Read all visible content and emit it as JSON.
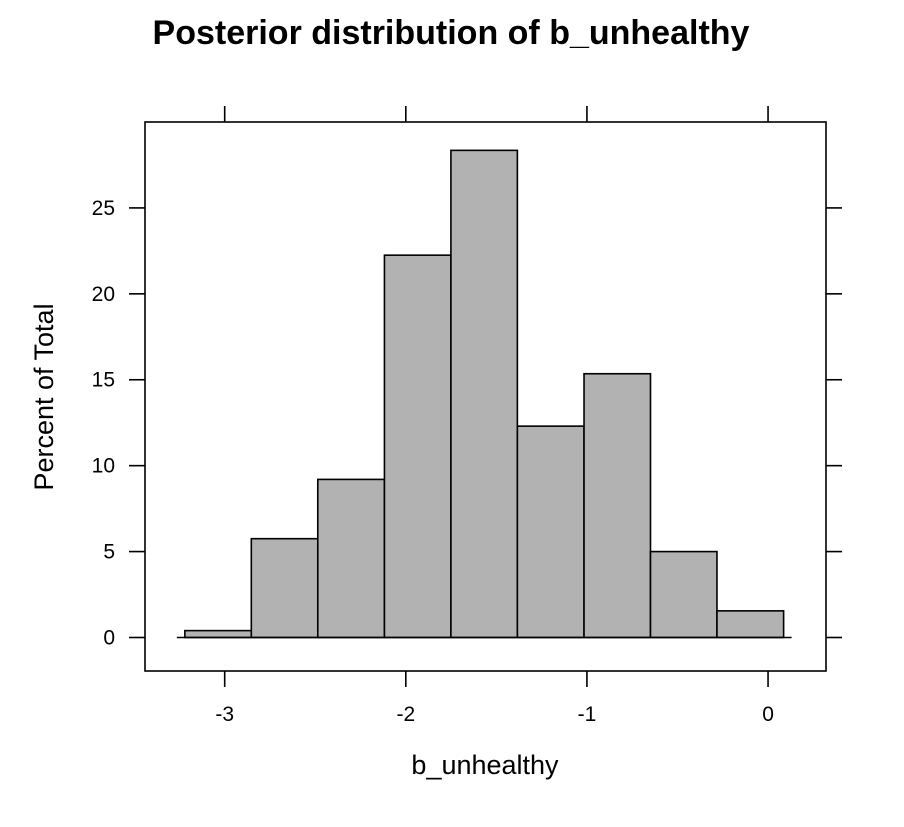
{
  "chart_data": {
    "type": "bar",
    "title": "Posterior distribution of b_unhealthy",
    "xlabel": "b_unhealthy",
    "ylabel": "Percent of Total",
    "xlim": [
      -3.44,
      0.32
    ],
    "ylim": [
      -1.95,
      30.0
    ],
    "bin_edges": [
      -3.22,
      -2.853,
      -2.486,
      -2.118,
      -1.751,
      -1.384,
      -1.016,
      -0.649,
      -0.282,
      0.086
    ],
    "values": [
      0.4,
      5.75,
      9.2,
      22.25,
      28.35,
      12.3,
      15.35,
      5.0,
      1.55
    ],
    "x_ticks": [
      {
        "value": -3,
        "label": "-3"
      },
      {
        "value": -2,
        "label": "-2"
      },
      {
        "value": -1,
        "label": "-1"
      },
      {
        "value": 0,
        "label": "0"
      }
    ],
    "y_ticks": [
      {
        "value": 0,
        "label": "0"
      },
      {
        "value": 5,
        "label": "5"
      },
      {
        "value": 10,
        "label": "10"
      },
      {
        "value": 15,
        "label": "15"
      },
      {
        "value": 20,
        "label": "20"
      },
      {
        "value": 25,
        "label": "25"
      }
    ],
    "bar_color": "#b2b2b2",
    "grid": false,
    "legend": "none"
  }
}
